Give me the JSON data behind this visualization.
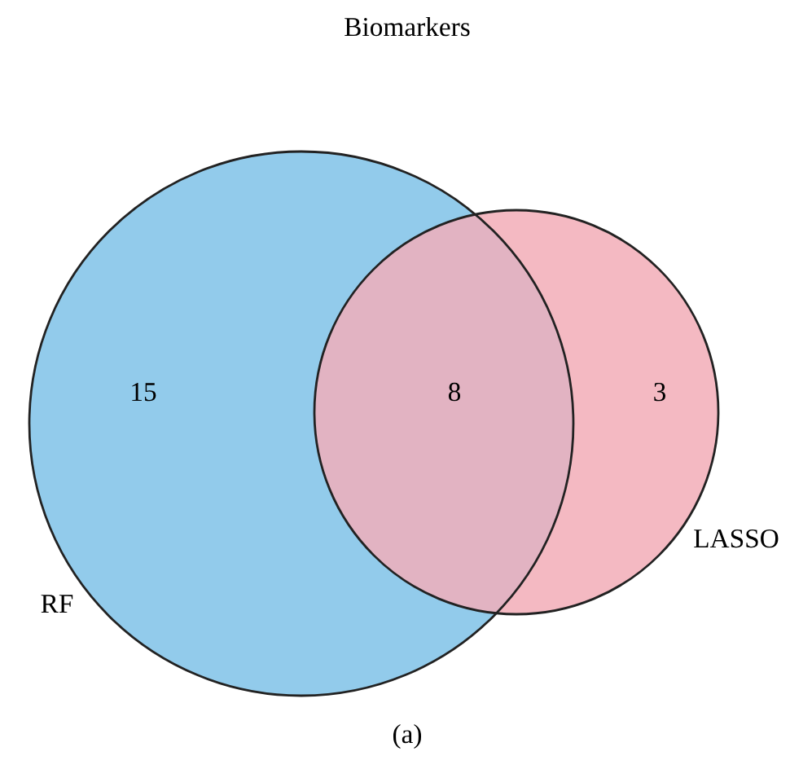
{
  "chart_data": {
    "type": "other",
    "title": "Biomarkers",
    "categories": [
      null,
      null,
      null
    ],
    "values": [
      15,
      8,
      3
    ],
    "colors": [
      "#92cbeb",
      "#e2b3c2",
      "#f4b9c2"
    ],
    "data_labels": true,
    "annotations": [
      "RF",
      "LASSO",
      "(a)"
    ]
  }
}
